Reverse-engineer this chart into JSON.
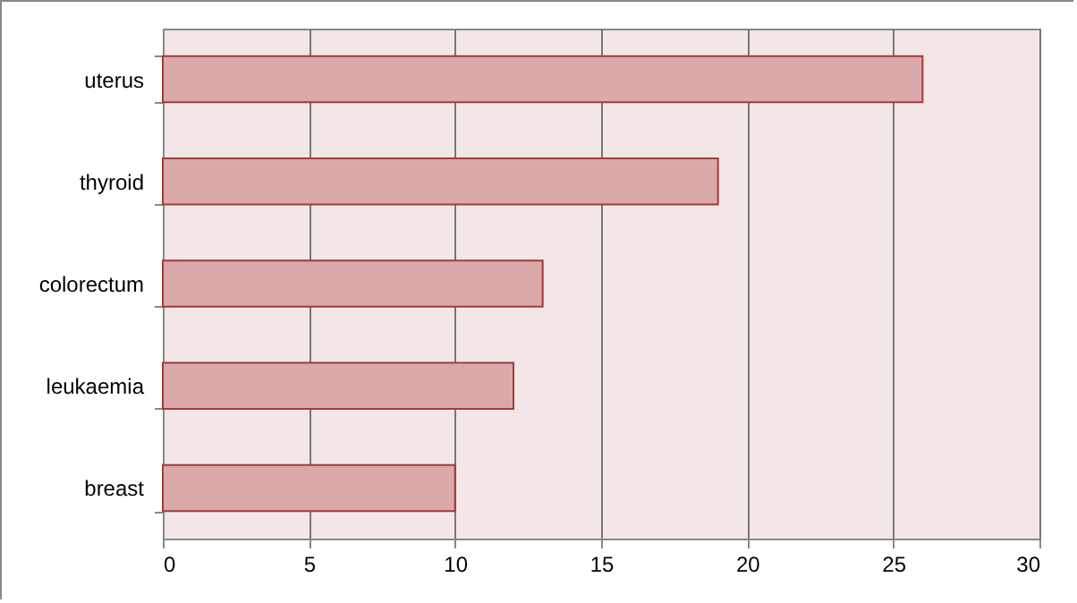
{
  "chart_data": {
    "type": "bar",
    "orientation": "horizontal",
    "categories": [
      "uterus",
      "thyroid",
      "colorectum",
      "leukaemia",
      "breast"
    ],
    "values": [
      26,
      19,
      13,
      12,
      10
    ],
    "color": "#dba9a9",
    "xlim": [
      0,
      30
    ],
    "xticks": [
      0,
      5,
      10,
      15,
      20,
      25,
      30
    ],
    "grid": "x"
  }
}
